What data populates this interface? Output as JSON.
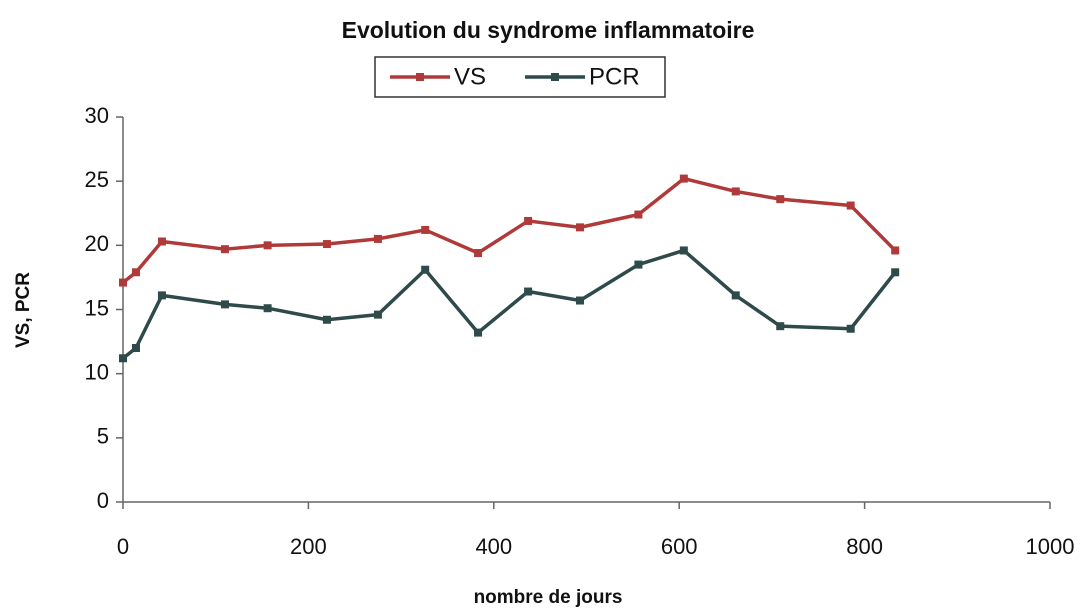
{
  "chart_data": {
    "type": "line",
    "title": "Evolution du syndrome inflammatoire",
    "xlabel": "nombre de jours",
    "ylabel": "VS, PCR",
    "x": [
      0,
      14,
      42,
      110,
      156,
      220,
      275,
      326,
      383,
      437,
      493,
      556,
      605,
      661,
      709,
      785,
      833
    ],
    "series": [
      {
        "name": "VS",
        "color": "#b03a3a",
        "values": [
          17.1,
          17.9,
          20.3,
          19.7,
          20.0,
          20.1,
          20.5,
          21.2,
          19.4,
          21.9,
          21.4,
          22.4,
          25.2,
          24.2,
          23.6,
          23.1,
          19.6
        ]
      },
      {
        "name": "PCR",
        "color": "#2f4a4a",
        "values": [
          11.2,
          12.0,
          16.1,
          15.4,
          15.1,
          14.2,
          14.6,
          18.1,
          13.2,
          16.4,
          15.7,
          18.5,
          19.6,
          16.1,
          13.7,
          13.5,
          17.9
        ]
      }
    ],
    "xlim": [
      0,
      1000
    ],
    "xticks": [
      0,
      200,
      400,
      600,
      800,
      1000
    ],
    "ylim": [
      0,
      30
    ],
    "yticks": [
      0,
      5,
      10,
      15,
      20,
      25,
      30
    ],
    "legend": "top"
  }
}
